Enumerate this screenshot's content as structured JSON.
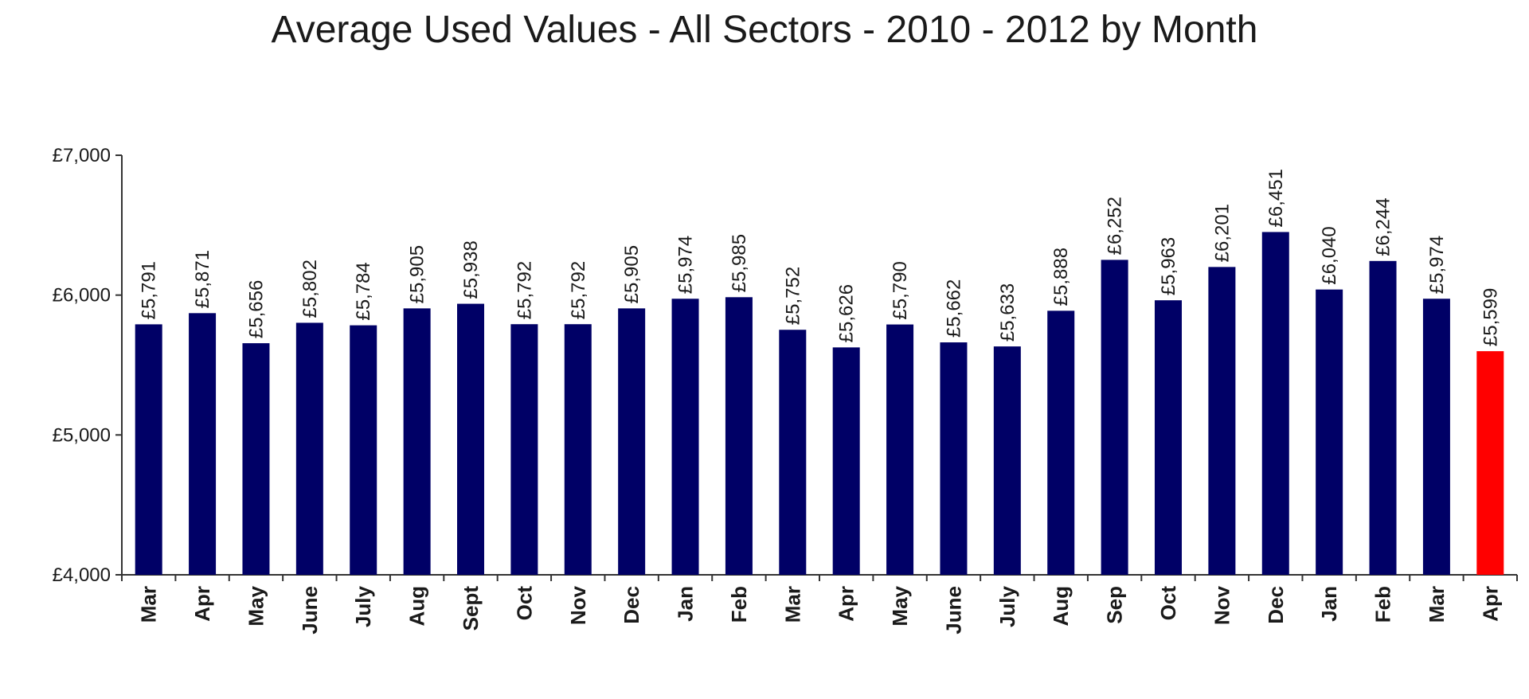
{
  "chart_data": {
    "type": "bar",
    "title": "Average Used Values - All Sectors - 2010 - 2012 by Month",
    "xlabel": "",
    "ylabel": "",
    "ylim": [
      4000,
      7000
    ],
    "yticks": [
      4000,
      5000,
      6000,
      7000
    ],
    "ytick_labels": [
      "£4,000",
      "£5,000",
      "£6,000",
      "£7,000"
    ],
    "categories": [
      "Mar",
      "Apr",
      "May",
      "June",
      "July",
      "Aug",
      "Sept",
      "Oct",
      "Nov",
      "Dec",
      "Jan",
      "Feb",
      "Mar",
      "Apr",
      "May",
      "June",
      "July",
      "Aug",
      "Sep",
      "Oct",
      "Nov",
      "Dec",
      "Jan",
      "Feb",
      "Mar",
      "Apr"
    ],
    "values": [
      5791,
      5871,
      5656,
      5802,
      5784,
      5905,
      5938,
      5792,
      5792,
      5905,
      5974,
      5985,
      5752,
      5626,
      5790,
      5662,
      5633,
      5888,
      6252,
      5963,
      6201,
      6451,
      6040,
      6244,
      5974,
      5599
    ],
    "value_labels": [
      "£5,791",
      "£5,871",
      "£5,656",
      "£5,802",
      "£5,784",
      "£5,905",
      "£5,938",
      "£5,792",
      "£5,792",
      "£5,905",
      "£5,974",
      "£5,985",
      "£5,752",
      "£5,626",
      "£5,790",
      "£5,662",
      "£5,633",
      "£5,888",
      "£6,252",
      "£5,963",
      "£6,201",
      "£6,451",
      "£6,040",
      "£6,244",
      "£5,974",
      "£5,599"
    ],
    "bar_color": "#000066",
    "highlight_index": 25,
    "highlight_color": "#ff0000",
    "grid": false,
    "legend": "none"
  }
}
